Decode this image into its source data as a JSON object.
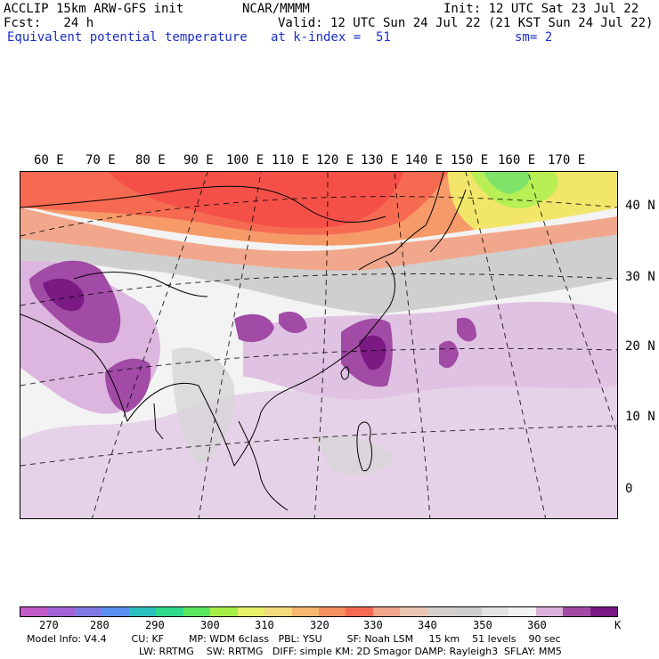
{
  "header": {
    "model": "ACCLIP 15km ARW-GFS init",
    "org": "NCAR/MMMM",
    "init": "Init: 12 UTC Sat 23 Jul 22",
    "fcst": "Fcst:   24 h",
    "valid": "Valid: 12 UTC Sun 24 Jul 22 (21 KST Sun 24 Jul 22)",
    "field": "Equivalent potential temperature",
    "level": "at k-index =  51",
    "smooth": "sm= 2"
  },
  "map": {
    "lon_labels": [
      "60 E",
      "70 E",
      "80 E",
      "90 E",
      "100 E",
      "110 E",
      "120 E",
      "130 E",
      "140 E",
      "150 E",
      "160 E",
      "170 E"
    ],
    "lat_labels": [
      "40 N",
      "30 N",
      "20 N",
      "10 N",
      "0"
    ]
  },
  "colorbar": {
    "colors": [
      "#c05bc8",
      "#a363d6",
      "#7f7be3",
      "#5b8ff0",
      "#2bbfc0",
      "#2ed98a",
      "#5be85f",
      "#a6ef49",
      "#e8f36b",
      "#f4da7c",
      "#f6b86e",
      "#f78e5e",
      "#f66a52",
      "#f2a58a",
      "#e9c6b1",
      "#d6d0cc",
      "#cfcfcf",
      "#e4e4e4",
      "#f3f3f3",
      "#dbb1dc",
      "#a14ba6",
      "#7a1a82"
    ],
    "ticks": [
      "270",
      "280",
      "290",
      "300",
      "310",
      "320",
      "330",
      "340",
      "350",
      "360"
    ],
    "unit": "K"
  },
  "footer": {
    "line1": "Model Info: V4.4        CU: KF        MP: WDM 6class   PBL: YSU        SF: Noah LSM     15 km    51 levels    90 sec",
    "line2": "LW: RRTMG    SW: RRTMG   DIFF: simple KM: 2D Smagor DAMP: Rayleigh3  SFLAY: MM5"
  }
}
